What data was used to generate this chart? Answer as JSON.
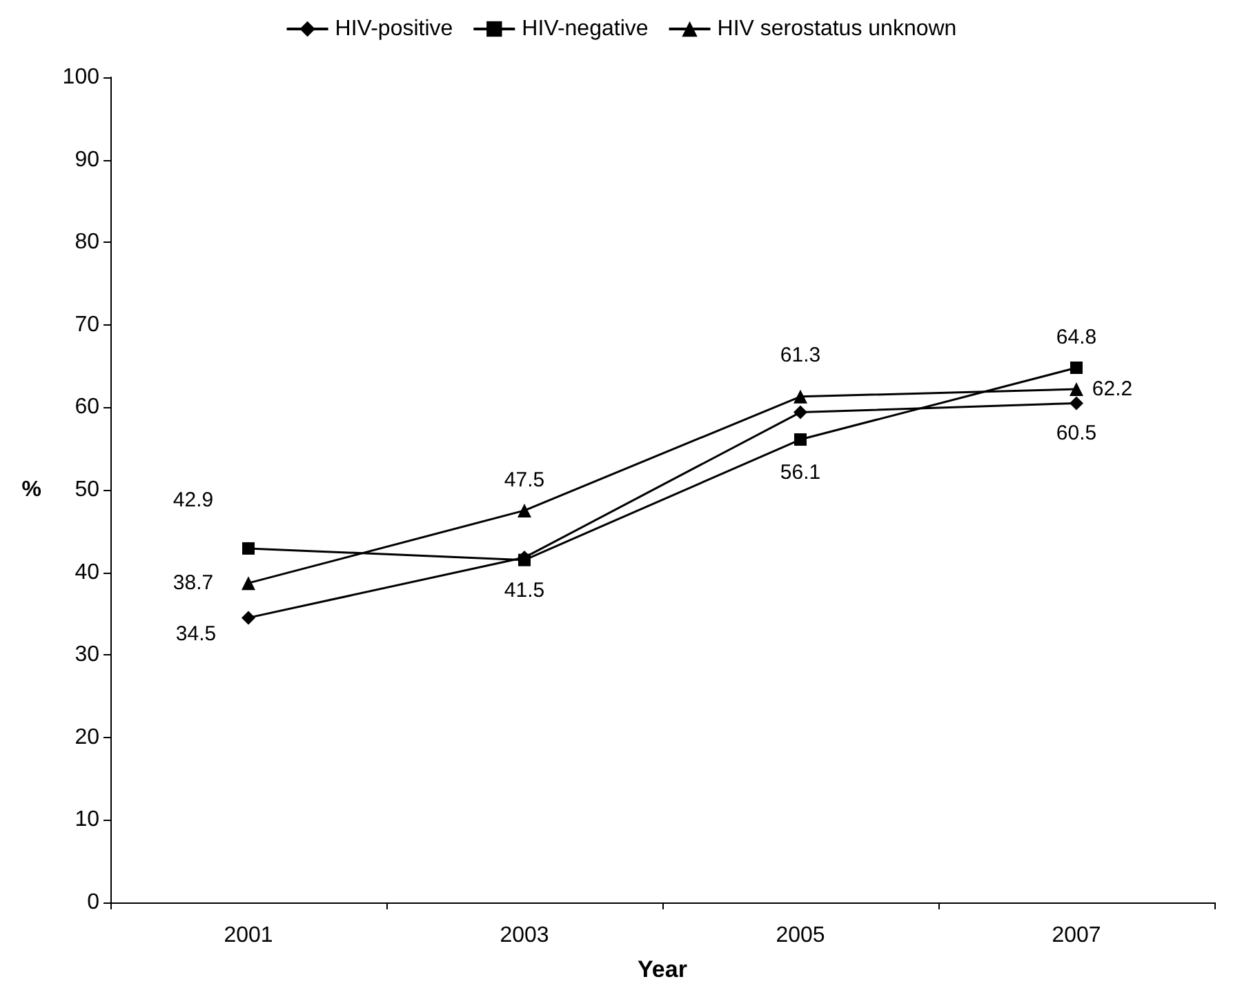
{
  "chart_data": {
    "type": "line",
    "xlabel": "Year",
    "ylabel": "%",
    "categories": [
      "2001",
      "2003",
      "2005",
      "2007"
    ],
    "series": [
      {
        "name": "HIV-positive",
        "color": "#000000",
        "marker": "diamond",
        "values": [
          34.5,
          41.8,
          59.4,
          60.5
        ],
        "value_labels": [
          "34.5",
          null,
          null,
          "60.5"
        ]
      },
      {
        "name": "HIV-negative",
        "color": "#000000",
        "marker": "square",
        "values": [
          42.9,
          41.5,
          56.1,
          64.8
        ],
        "value_labels": [
          "42.9",
          "41.5",
          "56.1",
          "64.8"
        ]
      },
      {
        "name": "HIV serostatus unknown",
        "color": "#000000",
        "marker": "triangle",
        "values": [
          38.7,
          47.5,
          61.3,
          62.2
        ],
        "value_labels": [
          "38.7",
          "47.5",
          "61.3",
          "62.2"
        ]
      }
    ],
    "ylim": [
      0,
      100
    ],
    "yticks": [
      0,
      10,
      20,
      30,
      40,
      50,
      60,
      70,
      80,
      90,
      100
    ],
    "grid": false,
    "legend": "top",
    "line_style": "solid"
  }
}
